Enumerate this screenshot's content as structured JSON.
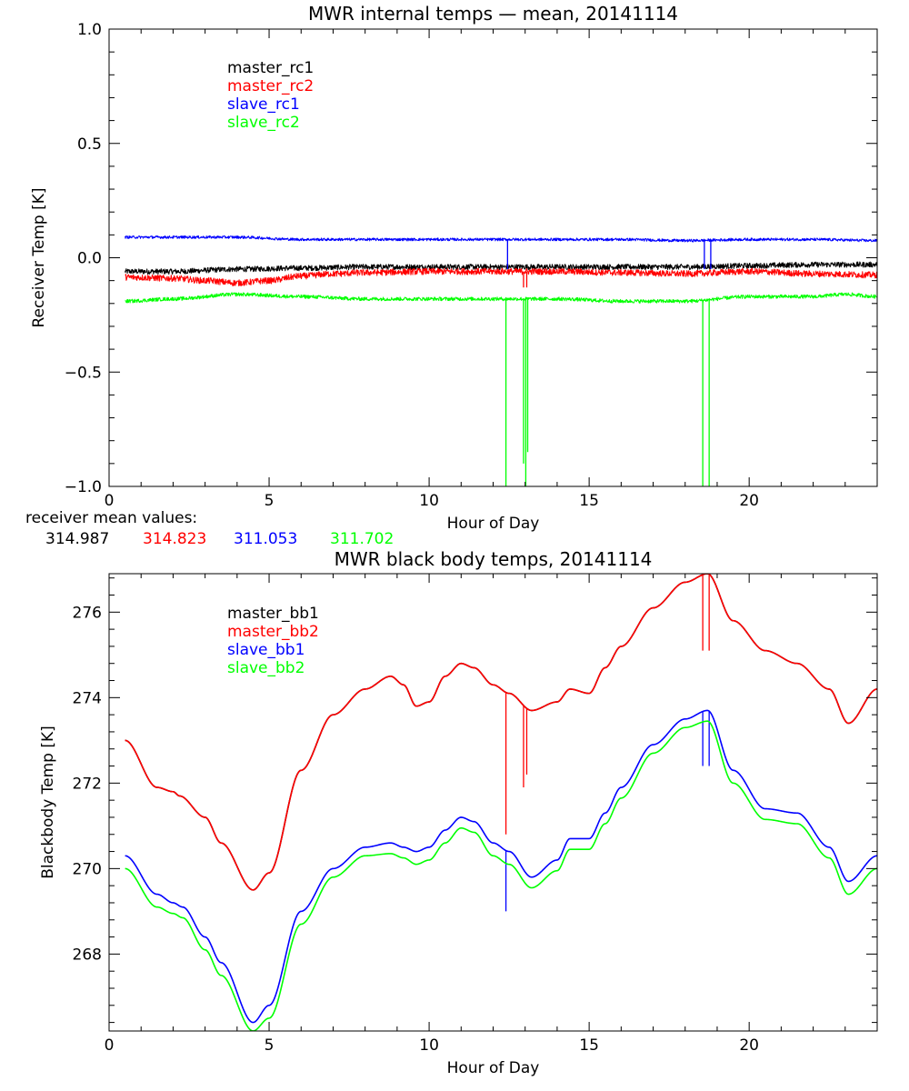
{
  "chart_data": [
    {
      "type": "line",
      "title": "MWR internal temps — mean, 20141114",
      "xlabel": "Hour of Day",
      "ylabel": "Receiver Temp [K]",
      "xlim": [
        0,
        24
      ],
      "ylim": [
        -1.0,
        1.0
      ],
      "x_ticks": [
        0,
        5,
        10,
        15,
        20
      ],
      "y_ticks": [
        -1.0,
        -0.5,
        0.0,
        0.5,
        1.0
      ],
      "y_tick_labels": [
        "−1.0",
        "−0.5",
        "0.0",
        "0.5",
        "1.0"
      ],
      "legend": "top-left",
      "series": [
        {
          "name": "master_rc1",
          "color": "#000000",
          "x": [
            0.5,
            2,
            4,
            6,
            8,
            10,
            12,
            14,
            16,
            18,
            20,
            22,
            24
          ],
          "y": [
            -0.06,
            -0.06,
            -0.05,
            -0.045,
            -0.04,
            -0.04,
            -0.04,
            -0.04,
            -0.04,
            -0.04,
            -0.035,
            -0.03,
            -0.03
          ],
          "noise": 0.012,
          "spikes": []
        },
        {
          "name": "master_rc2",
          "color": "#ff0000",
          "x": [
            0.5,
            2,
            3,
            4,
            5,
            6,
            7,
            8,
            10,
            12,
            14,
            16,
            18,
            20,
            22,
            24
          ],
          "y": [
            -0.085,
            -0.09,
            -0.1,
            -0.11,
            -0.1,
            -0.08,
            -0.07,
            -0.065,
            -0.06,
            -0.06,
            -0.06,
            -0.065,
            -0.07,
            -0.06,
            -0.07,
            -0.075
          ],
          "noise": 0.014,
          "spikes": [
            {
              "x": 12.95,
              "to": -0.13
            },
            {
              "x": 13.05,
              "to": -0.13
            }
          ]
        },
        {
          "name": "slave_rc1",
          "color": "#0000ff",
          "x": [
            0.5,
            4,
            6,
            8,
            10,
            12,
            14,
            16,
            18,
            20,
            22,
            24
          ],
          "y": [
            0.09,
            0.09,
            0.08,
            0.08,
            0.08,
            0.08,
            0.08,
            0.08,
            0.075,
            0.08,
            0.08,
            0.075
          ],
          "noise": 0.006,
          "spikes": [
            {
              "x": 12.45,
              "to": -0.05
            },
            {
              "x": 18.6,
              "to": -0.05
            },
            {
              "x": 18.8,
              "to": -0.05
            }
          ]
        },
        {
          "name": "slave_rc2",
          "color": "#00ff00",
          "x": [
            0.5,
            2,
            4,
            6,
            8,
            10,
            12,
            14,
            16,
            18,
            20,
            22,
            23,
            24
          ],
          "y": [
            -0.19,
            -0.18,
            -0.16,
            -0.17,
            -0.18,
            -0.18,
            -0.18,
            -0.18,
            -0.19,
            -0.19,
            -0.17,
            -0.17,
            -0.16,
            -0.17
          ],
          "noise": 0.008,
          "spikes": [
            {
              "x": 12.4,
              "to": -1.0
            },
            {
              "x": 12.95,
              "to": -0.9
            },
            {
              "x": 13.02,
              "to": -1.0
            },
            {
              "x": 13.08,
              "to": -0.85
            },
            {
              "x": 18.55,
              "to": -1.0
            },
            {
              "x": 18.75,
              "to": -1.0
            }
          ]
        }
      ]
    },
    {
      "type": "line",
      "title": "MWR black body temps, 20141114",
      "xlabel": "Hour of Day",
      "ylabel": "Blackbody Temp [K]",
      "xlim": [
        0,
        24
      ],
      "ylim": [
        266.2,
        276.9
      ],
      "x_ticks": [
        0,
        5,
        10,
        15,
        20
      ],
      "y_ticks": [
        268,
        270,
        272,
        274,
        276
      ],
      "y_tick_labels": [
        "268",
        "270",
        "272",
        "274",
        "276"
      ],
      "legend": "top-left",
      "series": [
        {
          "name": "master_bb1",
          "color": "#000000",
          "x": [
            0.5,
            1.5,
            2.0,
            2.2,
            3.0,
            3.5,
            4.5,
            5.0,
            6.0,
            7.0,
            8.0,
            8.8,
            9.2,
            9.6,
            10.0,
            10.5,
            11.0,
            11.4,
            12.0,
            12.5,
            13.2,
            14.0,
            14.4,
            15.0,
            15.5,
            16.0,
            17.0,
            18.0,
            18.7,
            19.5,
            20.5,
            21.5,
            22.5,
            23.1,
            24.0
          ],
          "y": [
            273.0,
            271.9,
            271.8,
            271.7,
            271.2,
            270.6,
            269.5,
            269.9,
            272.3,
            273.6,
            274.2,
            274.5,
            274.3,
            273.8,
            273.9,
            274.5,
            274.8,
            274.7,
            274.3,
            274.1,
            273.7,
            273.9,
            274.2,
            274.1,
            274.7,
            275.2,
            276.1,
            276.7,
            276.9,
            275.8,
            275.1,
            274.8,
            274.2,
            273.4,
            274.2
          ],
          "noise": 0,
          "spikes": []
        },
        {
          "name": "master_bb2",
          "color": "#ff0000",
          "x": [
            0.5,
            1.5,
            2.0,
            2.2,
            3.0,
            3.5,
            4.5,
            5.0,
            6.0,
            7.0,
            8.0,
            8.8,
            9.2,
            9.6,
            10.0,
            10.5,
            11.0,
            11.4,
            12.0,
            12.5,
            13.2,
            14.0,
            14.4,
            15.0,
            15.5,
            16.0,
            17.0,
            18.0,
            18.7,
            19.5,
            20.5,
            21.5,
            22.5,
            23.1,
            24.0
          ],
          "y": [
            273.0,
            271.9,
            271.8,
            271.7,
            271.2,
            270.6,
            269.5,
            269.9,
            272.3,
            273.6,
            274.2,
            274.5,
            274.3,
            273.8,
            273.9,
            274.5,
            274.8,
            274.7,
            274.3,
            274.1,
            273.7,
            273.9,
            274.2,
            274.1,
            274.7,
            275.2,
            276.1,
            276.7,
            276.9,
            275.8,
            275.1,
            274.8,
            274.2,
            273.4,
            274.2
          ],
          "noise": 0,
          "spikes": [
            {
              "x": 12.4,
              "to": 270.8
            },
            {
              "x": 12.95,
              "to": 271.9
            },
            {
              "x": 13.05,
              "to": 272.2
            },
            {
              "x": 18.55,
              "to": 275.1
            },
            {
              "x": 18.75,
              "to": 275.1
            }
          ]
        },
        {
          "name": "slave_bb1",
          "color": "#0000ff",
          "x": [
            0.5,
            1.5,
            2.0,
            2.3,
            3.0,
            3.5,
            4.5,
            5.0,
            6.0,
            7.0,
            8.0,
            8.8,
            9.2,
            9.6,
            10.0,
            10.5,
            11.0,
            11.4,
            12.0,
            12.5,
            13.2,
            14.0,
            14.4,
            15.0,
            15.5,
            16.0,
            17.0,
            18.0,
            18.7,
            19.5,
            20.5,
            21.5,
            22.5,
            23.1,
            24.0
          ],
          "y": [
            270.3,
            269.4,
            269.2,
            269.1,
            268.4,
            267.8,
            266.4,
            266.8,
            269.0,
            270.0,
            270.5,
            270.6,
            270.5,
            270.4,
            270.5,
            270.9,
            271.2,
            271.1,
            270.6,
            270.4,
            269.8,
            270.2,
            270.7,
            270.7,
            271.3,
            271.9,
            272.9,
            273.5,
            273.7,
            272.3,
            271.4,
            271.3,
            270.5,
            269.7,
            270.3
          ],
          "noise": 0,
          "spikes": [
            {
              "x": 12.4,
              "to": 269.0
            },
            {
              "x": 18.55,
              "to": 272.4
            },
            {
              "x": 18.75,
              "to": 272.4
            }
          ]
        },
        {
          "name": "slave_bb2",
          "color": "#00ff00",
          "x": [
            0.5,
            1.5,
            2.0,
            2.3,
            3.0,
            3.5,
            4.5,
            5.0,
            6.0,
            7.0,
            8.0,
            8.8,
            9.2,
            9.6,
            10.0,
            10.5,
            11.0,
            11.4,
            12.0,
            12.5,
            13.2,
            14.0,
            14.4,
            15.0,
            15.5,
            16.0,
            17.0,
            18.0,
            18.7,
            19.5,
            20.5,
            21.5,
            22.5,
            23.1,
            24.0
          ],
          "y": [
            270.0,
            269.1,
            268.95,
            268.85,
            268.1,
            267.5,
            266.2,
            266.5,
            268.7,
            269.8,
            270.3,
            270.35,
            270.25,
            270.1,
            270.2,
            270.6,
            270.95,
            270.85,
            270.3,
            270.1,
            269.55,
            269.95,
            270.45,
            270.45,
            271.05,
            271.65,
            272.7,
            273.3,
            273.45,
            272.0,
            271.15,
            271.05,
            270.25,
            269.4,
            270.0
          ],
          "noise": 0,
          "spikes": []
        }
      ]
    }
  ],
  "receiver_mean": {
    "label": "receiver mean values:",
    "values": [
      {
        "text": "314.987",
        "color": "#000000"
      },
      {
        "text": "314.823",
        "color": "#ff0000"
      },
      {
        "text": "311.053",
        "color": "#0000ff"
      },
      {
        "text": "311.702",
        "color": "#00ff00"
      }
    ]
  }
}
